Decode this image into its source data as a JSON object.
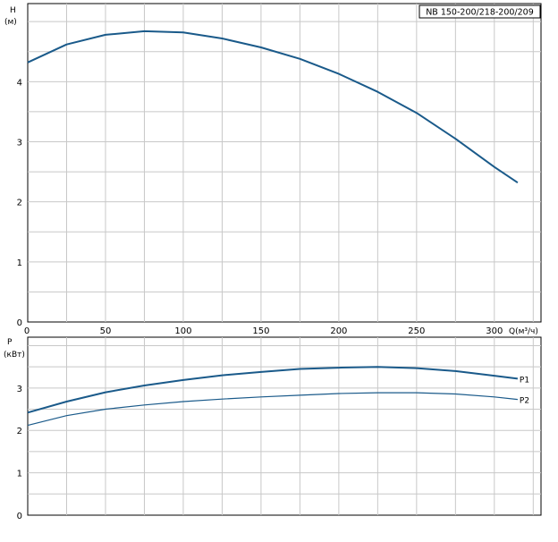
{
  "chart_data": [
    {
      "type": "line",
      "title": "NB 150-200/218-200/209",
      "ylabel": "H",
      "yunit": "(м)",
      "xlabel": "Q(м³/ч)",
      "xlim": [
        0,
        330
      ],
      "ylim": [
        0,
        5.3
      ],
      "xticks": [
        "0",
        "50",
        "100",
        "150",
        "200",
        "250",
        "300"
      ],
      "yticks": [
        "0",
        "1",
        "2",
        "3",
        "4"
      ],
      "grid": true,
      "series": [
        {
          "name": "",
          "color": "#1a5a8a",
          "x": [
            0,
            25,
            50,
            75,
            100,
            125,
            150,
            175,
            200,
            225,
            250,
            275,
            300,
            315
          ],
          "y": [
            4.32,
            4.62,
            4.78,
            4.84,
            4.82,
            4.72,
            4.57,
            4.38,
            4.13,
            3.83,
            3.48,
            3.05,
            2.58,
            2.32
          ]
        }
      ]
    },
    {
      "type": "line",
      "ylabel": "P",
      "yunit": "(кВт)",
      "xlim": [
        0,
        330
      ],
      "ylim": [
        0,
        4.2
      ],
      "yticks": [
        "0",
        "1",
        "2",
        "3"
      ],
      "grid": true,
      "series": [
        {
          "name": "P1",
          "color": "#1a5a8a",
          "x": [
            0,
            25,
            50,
            75,
            100,
            125,
            150,
            175,
            200,
            225,
            250,
            275,
            300,
            315
          ],
          "y": [
            2.42,
            2.68,
            2.9,
            3.06,
            3.19,
            3.3,
            3.38,
            3.45,
            3.48,
            3.5,
            3.47,
            3.4,
            3.29,
            3.22
          ]
        },
        {
          "name": "P2",
          "color": "#1a5a8a",
          "x": [
            0,
            25,
            50,
            75,
            100,
            125,
            150,
            175,
            200,
            225,
            250,
            275,
            300,
            315
          ],
          "y": [
            2.12,
            2.35,
            2.5,
            2.6,
            2.68,
            2.74,
            2.79,
            2.83,
            2.87,
            2.89,
            2.89,
            2.86,
            2.79,
            2.73
          ]
        }
      ]
    }
  ]
}
